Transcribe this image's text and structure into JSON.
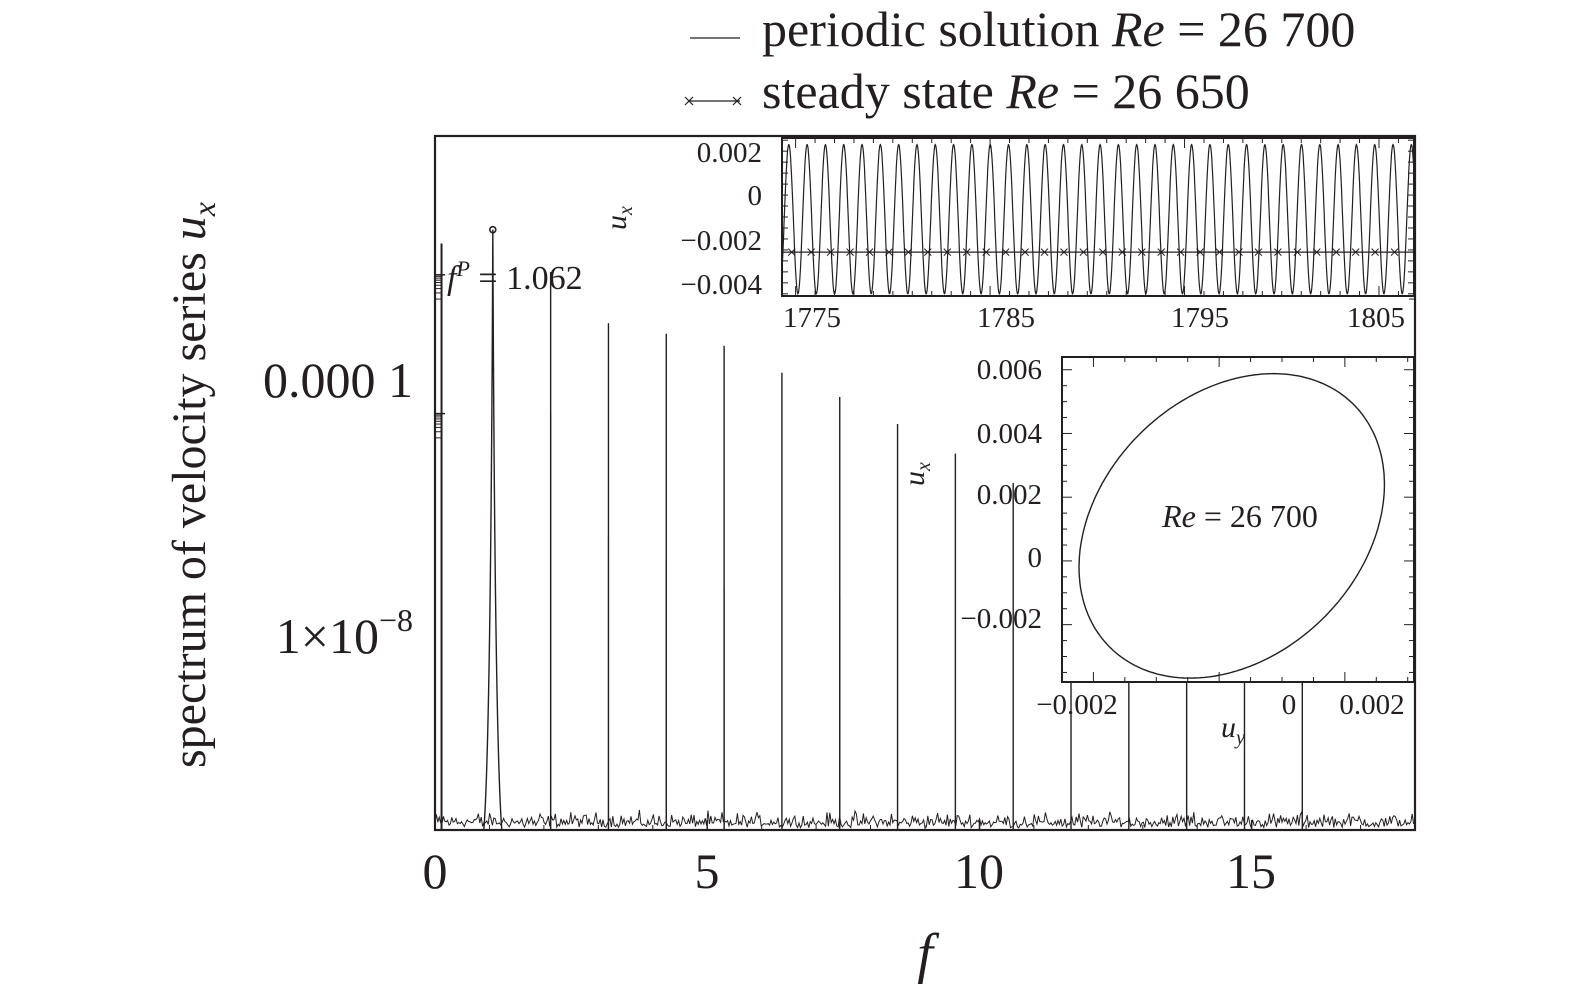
{
  "legend": {
    "items": [
      {
        "text": "periodic solution ",
        "re_symbol": "Re",
        "re_value": " = 26 700",
        "marker": "line"
      },
      {
        "text": "steady state ",
        "re_symbol": "Re",
        "re_value": " = 26 650",
        "marker": "line-x"
      }
    ]
  },
  "chart_data": [
    {
      "type": "line",
      "role": "main",
      "scale_y": "log",
      "xlabel": "f",
      "ylabel": "spectrum of velocity series ",
      "ylabel_symbol": "u",
      "ylabel_subscript": "x",
      "xlim": [
        0,
        18
      ],
      "ylim_exponent": [
        -20,
        0
      ],
      "x_ticks": [
        0,
        5,
        10,
        15
      ],
      "x_tick_labels": [
        "0",
        "5",
        "10",
        "15"
      ],
      "y_ticks": [
        0.0001,
        1e-08
      ],
      "y_tick_labels": [
        "0.000 1",
        "1×10",
        "−8"
      ],
      "noise_floor": 3e-18,
      "series": [
        {
          "name": "periodic solution Re = 26 700",
          "peaks": [
            {
              "f": 1.062,
              "amplitude": 0.002
            },
            {
              "f": 2.124,
              "amplitude": 0.00012
            },
            {
              "f": 3.186,
              "amplitude": 4e-06
            },
            {
              "f": 4.248,
              "amplitude": 2e-06
            },
            {
              "f": 5.31,
              "amplitude": 9e-07
            },
            {
              "f": 6.372,
              "amplitude": 1.5e-07
            },
            {
              "f": 7.434,
              "amplitude": 3e-08
            },
            {
              "f": 8.496,
              "amplitude": 5e-09
            },
            {
              "f": 9.558,
              "amplitude": 7e-10
            },
            {
              "f": 10.62,
              "amplitude": 1e-10
            },
            {
              "f": 11.682,
              "amplitude": 1e-11
            },
            {
              "f": 12.744,
              "amplitude": 1e-12
            },
            {
              "f": 13.806,
              "amplitude": 1e-13
            },
            {
              "f": 14.868,
              "amplitude": 1e-14
            },
            {
              "f": 15.93,
              "amplitude": 1e-15
            }
          ]
        },
        {
          "name": "steady state Re = 26 650",
          "peaks": [
            {
              "f": 2.124,
              "amplitude": 1e-08
            },
            {
              "f": 3.186,
              "amplitude": 3e-12
            },
            {
              "f": 4.248,
              "amplitude": 5e-13
            },
            {
              "f": 5.31,
              "amplitude": 1e-13
            },
            {
              "f": 7.434,
              "amplitude": 5e-14
            }
          ]
        }
      ],
      "annotation": {
        "symbol": "f",
        "superscript": "P",
        "text": " = 1.062",
        "f": 1.062
      }
    },
    {
      "type": "line",
      "role": "inset-time-series",
      "xlabel": "",
      "ylabel": "u",
      "ylabel_subscript": "x",
      "xlim": [
        1774.3,
        1806.8
      ],
      "ylim": [
        -0.0046,
        0.0026
      ],
      "x_ticks": [
        1775,
        1785,
        1795,
        1805
      ],
      "x_tick_labels": [
        "1775",
        "1785",
        "1795",
        "1805"
      ],
      "y_ticks": [
        0.002,
        0,
        -0.002,
        -0.004
      ],
      "y_tick_labels": [
        "0.002",
        "0",
        "−0.002",
        "−0.004"
      ],
      "series": [
        {
          "name": "periodic solution Re = 26 700",
          "period": 0.9416,
          "mean": -0.0011,
          "amplitude": 0.0034,
          "phase_t0": 1774.65
        },
        {
          "name": "steady state Re = 26 650",
          "value": -0.0026
        }
      ]
    },
    {
      "type": "line",
      "role": "inset-phase-portrait",
      "xlabel": "u",
      "xlabel_subscript": "y",
      "ylabel": "u",
      "ylabel_subscript": "x",
      "xlim": [
        -0.0025,
        0.0031
      ],
      "ylim": [
        -0.0038,
        0.0064
      ],
      "x_ticks": [
        -0.002,
        0,
        0.002
      ],
      "x_tick_labels": [
        "−0.002",
        "0",
        "0.002"
      ],
      "y_ticks": [
        0.006,
        0.004,
        0.002,
        0,
        -0.002
      ],
      "y_tick_labels": [
        "0.006",
        "0.004",
        "0.002",
        "0",
        "−0.002"
      ],
      "annotation": {
        "symbol": "Re",
        "text": " = 26 700"
      },
      "series": [
        {
          "name": "Re = 26 700",
          "center_uy": 0.0002,
          "center_ux": 0.0011,
          "points": 0
        }
      ]
    }
  ]
}
